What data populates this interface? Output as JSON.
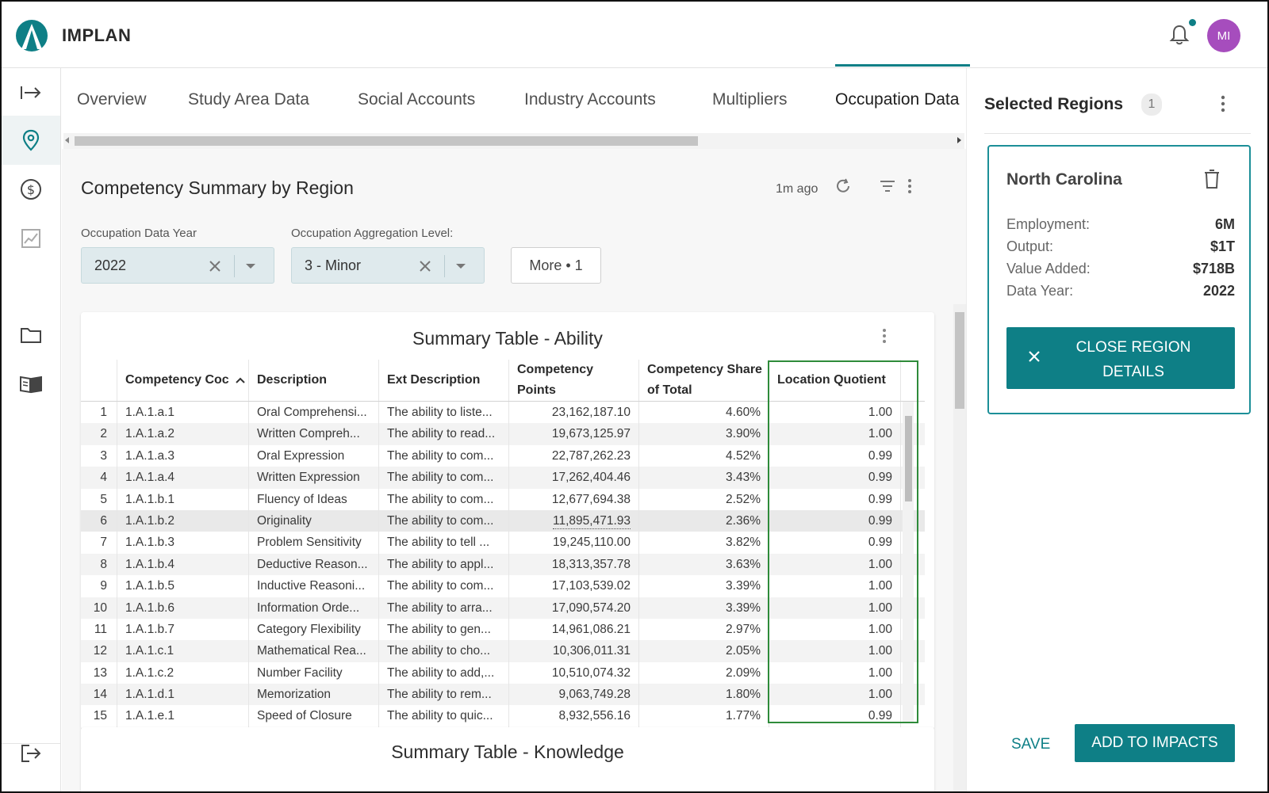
{
  "app": {
    "brand": "IMPLAN",
    "user_initials": "MI",
    "accent": "#0e7f86"
  },
  "tabs": [
    {
      "label": "Overview"
    },
    {
      "label": "Study Area Data"
    },
    {
      "label": "Social Accounts"
    },
    {
      "label": "Industry Accounts"
    },
    {
      "label": "Multipliers"
    },
    {
      "label": "Occupation Data"
    }
  ],
  "section": {
    "title": "Competency Summary by Region",
    "updated": "1m ago"
  },
  "filters": {
    "year_label": "Occupation Data Year",
    "year_value": "2022",
    "level_label": "Occupation Aggregation Level:",
    "level_value": "3 - Minor",
    "more_label": "More • 1"
  },
  "table": {
    "title": "Summary Table - Ability",
    "columns": {
      "code": "Competency Coc",
      "description": "Description",
      "ext": "Ext Description",
      "points": "Competency Points",
      "share": "Competency Share of Total",
      "lq": "Location Quotient"
    },
    "rows": [
      {
        "n": "1",
        "code": "1.A.1.a.1",
        "desc": "Oral Comprehensi...",
        "ext": "The ability to liste...",
        "points": "23,162,187.10",
        "share": "4.60%",
        "lq": "1.00"
      },
      {
        "n": "2",
        "code": "1.A.1.a.2",
        "desc": "Written Compreh...",
        "ext": "The ability to read...",
        "points": "19,673,125.97",
        "share": "3.90%",
        "lq": "1.00"
      },
      {
        "n": "3",
        "code": "1.A.1.a.3",
        "desc": "Oral Expression",
        "ext": "The ability to com...",
        "points": "22,787,262.23",
        "share": "4.52%",
        "lq": "0.99"
      },
      {
        "n": "4",
        "code": "1.A.1.a.4",
        "desc": "Written Expression",
        "ext": "The ability to com...",
        "points": "17,262,404.46",
        "share": "3.43%",
        "lq": "0.99"
      },
      {
        "n": "5",
        "code": "1.A.1.b.1",
        "desc": "Fluency of Ideas",
        "ext": "The ability to com...",
        "points": "12,677,694.38",
        "share": "2.52%",
        "lq": "0.99"
      },
      {
        "n": "6",
        "code": "1.A.1.b.2",
        "desc": "Originality",
        "ext": "The ability to com...",
        "points": "11,895,471.93",
        "share": "2.36%",
        "lq": "0.99"
      },
      {
        "n": "7",
        "code": "1.A.1.b.3",
        "desc": "Problem Sensitivity",
        "ext": "The ability to tell ...",
        "points": "19,245,110.00",
        "share": "3.82%",
        "lq": "0.99"
      },
      {
        "n": "8",
        "code": "1.A.1.b.4",
        "desc": "Deductive Reason...",
        "ext": "The ability to appl...",
        "points": "18,313,357.78",
        "share": "3.63%",
        "lq": "1.00"
      },
      {
        "n": "9",
        "code": "1.A.1.b.5",
        "desc": "Inductive Reasoni...",
        "ext": "The ability to com...",
        "points": "17,103,539.02",
        "share": "3.39%",
        "lq": "1.00"
      },
      {
        "n": "10",
        "code": "1.A.1.b.6",
        "desc": "Information Orde...",
        "ext": "The ability to arra...",
        "points": "17,090,574.20",
        "share": "3.39%",
        "lq": "1.00"
      },
      {
        "n": "11",
        "code": "1.A.1.b.7",
        "desc": "Category Flexibility",
        "ext": "The ability to gen...",
        "points": "14,961,086.21",
        "share": "2.97%",
        "lq": "1.00"
      },
      {
        "n": "12",
        "code": "1.A.1.c.1",
        "desc": "Mathematical Rea...",
        "ext": "The ability to cho...",
        "points": "10,306,011.31",
        "share": "2.05%",
        "lq": "1.00"
      },
      {
        "n": "13",
        "code": "1.A.1.c.2",
        "desc": "Number Facility",
        "ext": "The ability to add,...",
        "points": "10,510,074.32",
        "share": "2.09%",
        "lq": "1.00"
      },
      {
        "n": "14",
        "code": "1.A.1.d.1",
        "desc": "Memorization",
        "ext": "The ability to rem...",
        "points": "9,063,749.28",
        "share": "1.80%",
        "lq": "1.00"
      },
      {
        "n": "15",
        "code": "1.A.1.e.1",
        "desc": "Speed of Closure",
        "ext": "The ability to quic...",
        "points": "8,932,556.16",
        "share": "1.77%",
        "lq": "0.99"
      }
    ]
  },
  "table2": {
    "title": "Summary Table - Knowledge"
  },
  "panel": {
    "title": "Selected Regions",
    "count": "1",
    "region": {
      "name": "North Carolina",
      "employment_label": "Employment:",
      "employment": "6M",
      "output_label": "Output:",
      "output": "$1T",
      "value_added_label": "Value Added:",
      "value_added": "$718B",
      "data_year_label": "Data Year:",
      "data_year": "2022"
    },
    "close_label": "CLOSE REGION DETAILS",
    "save_label": "SAVE",
    "add_label": "ADD TO IMPACTS"
  }
}
